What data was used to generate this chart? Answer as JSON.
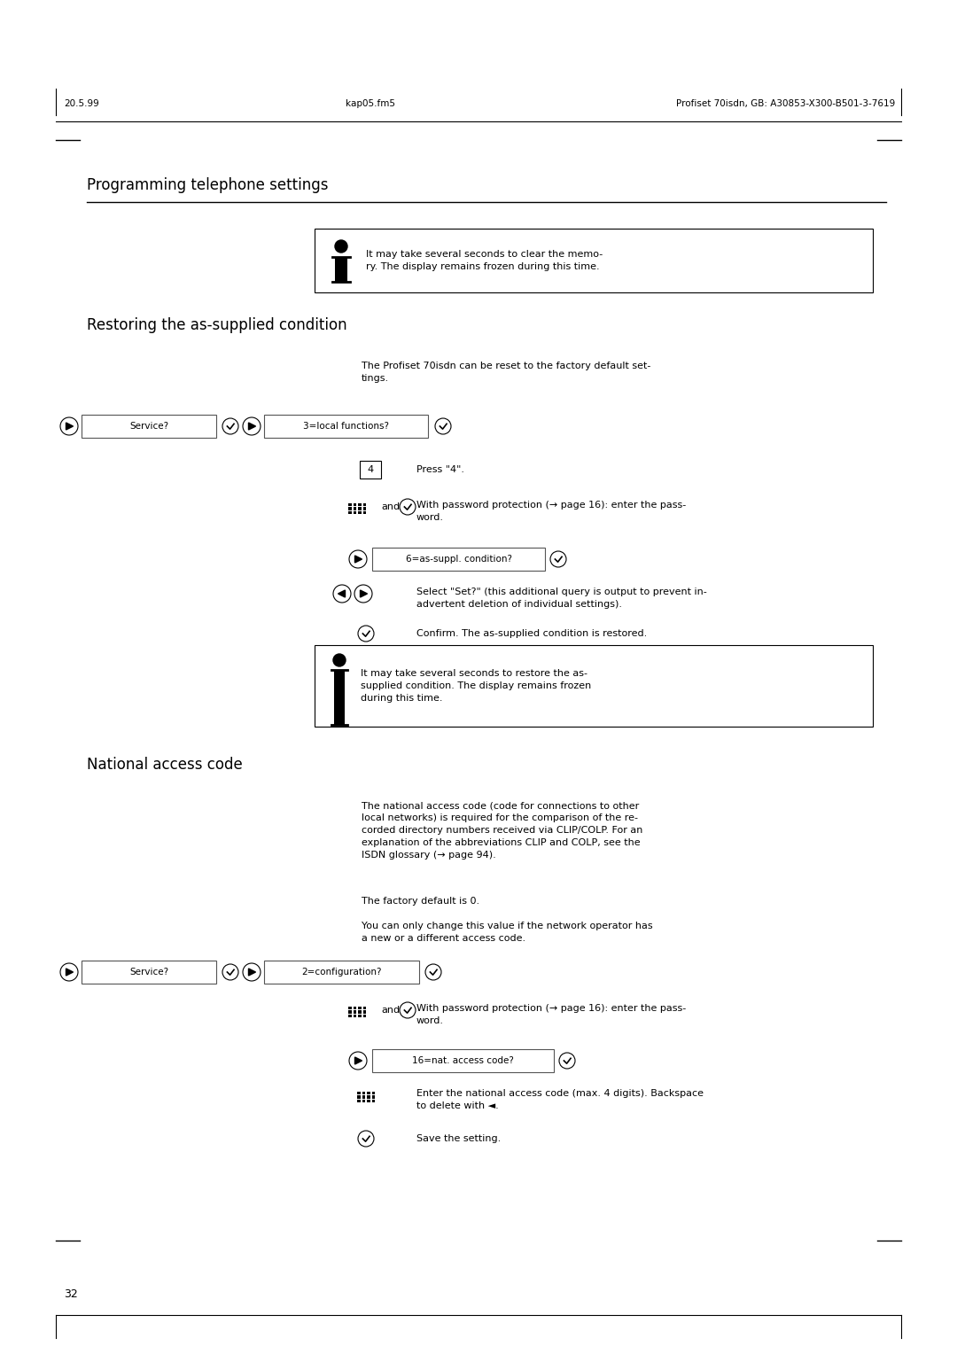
{
  "page_width": 10.8,
  "page_height": 15.28,
  "bg_color": "#ffffff",
  "header_left": "20.5.99",
  "header_center": "kap05.fm5",
  "header_right": "Profiset 70isdn, GB: A30853-X300-B501-3-7619",
  "chapter_title": "Programming telephone settings",
  "section1_title": "Restoring the as-supplied condition",
  "section2_title": "National access code",
  "footer_page": "32",
  "note1_text": "It may take several seconds to clear the memo-\nry. The display remains frozen during this time.",
  "note2_text": "It may take several seconds to restore the as-\nsupplied condition. The display remains frozen\nduring this time.",
  "desc1_text": "The Profiset 70isdn can be reset to the factory default set-\ntings.",
  "desc2_text": "The national access code (code for connections to other\nlocal networks) is required for the comparison of the re-\ncorded directory numbers received via CLIP/COLP. For an\nexplanation of the abbreviations CLIP and COLP, see the\nISDN glossary (→ page 94).",
  "desc3_text": "The factory default is 0.",
  "desc4_text": "You can only change this value if the network operator has\na new or a different access code.",
  "step1_text": "Press \"4\".",
  "step2_text": "With password protection (→ page 16): enter the pass-\nword.",
  "step3_text": "Select \"Set?\" (this additional query is output to prevent in-\nadvertent deletion of individual settings).",
  "step4_text": "Confirm. The as-supplied condition is restored.",
  "step5_text": "With password protection (→ page 16): enter the pass-\nword.",
  "step6_text": "Enter the national access code (max. 4 digits). Backspace\nto delete with ◄.",
  "step7_text": "Save the setting.",
  "lcd1_text": "Service?",
  "lcd2_text": "3=local functions?",
  "lcd3_text": "6=as-suppl. condition?",
  "lcd4_text": "Service?",
  "lcd5_text": "2=configuration?",
  "lcd6_text": "16=nat. access code?"
}
